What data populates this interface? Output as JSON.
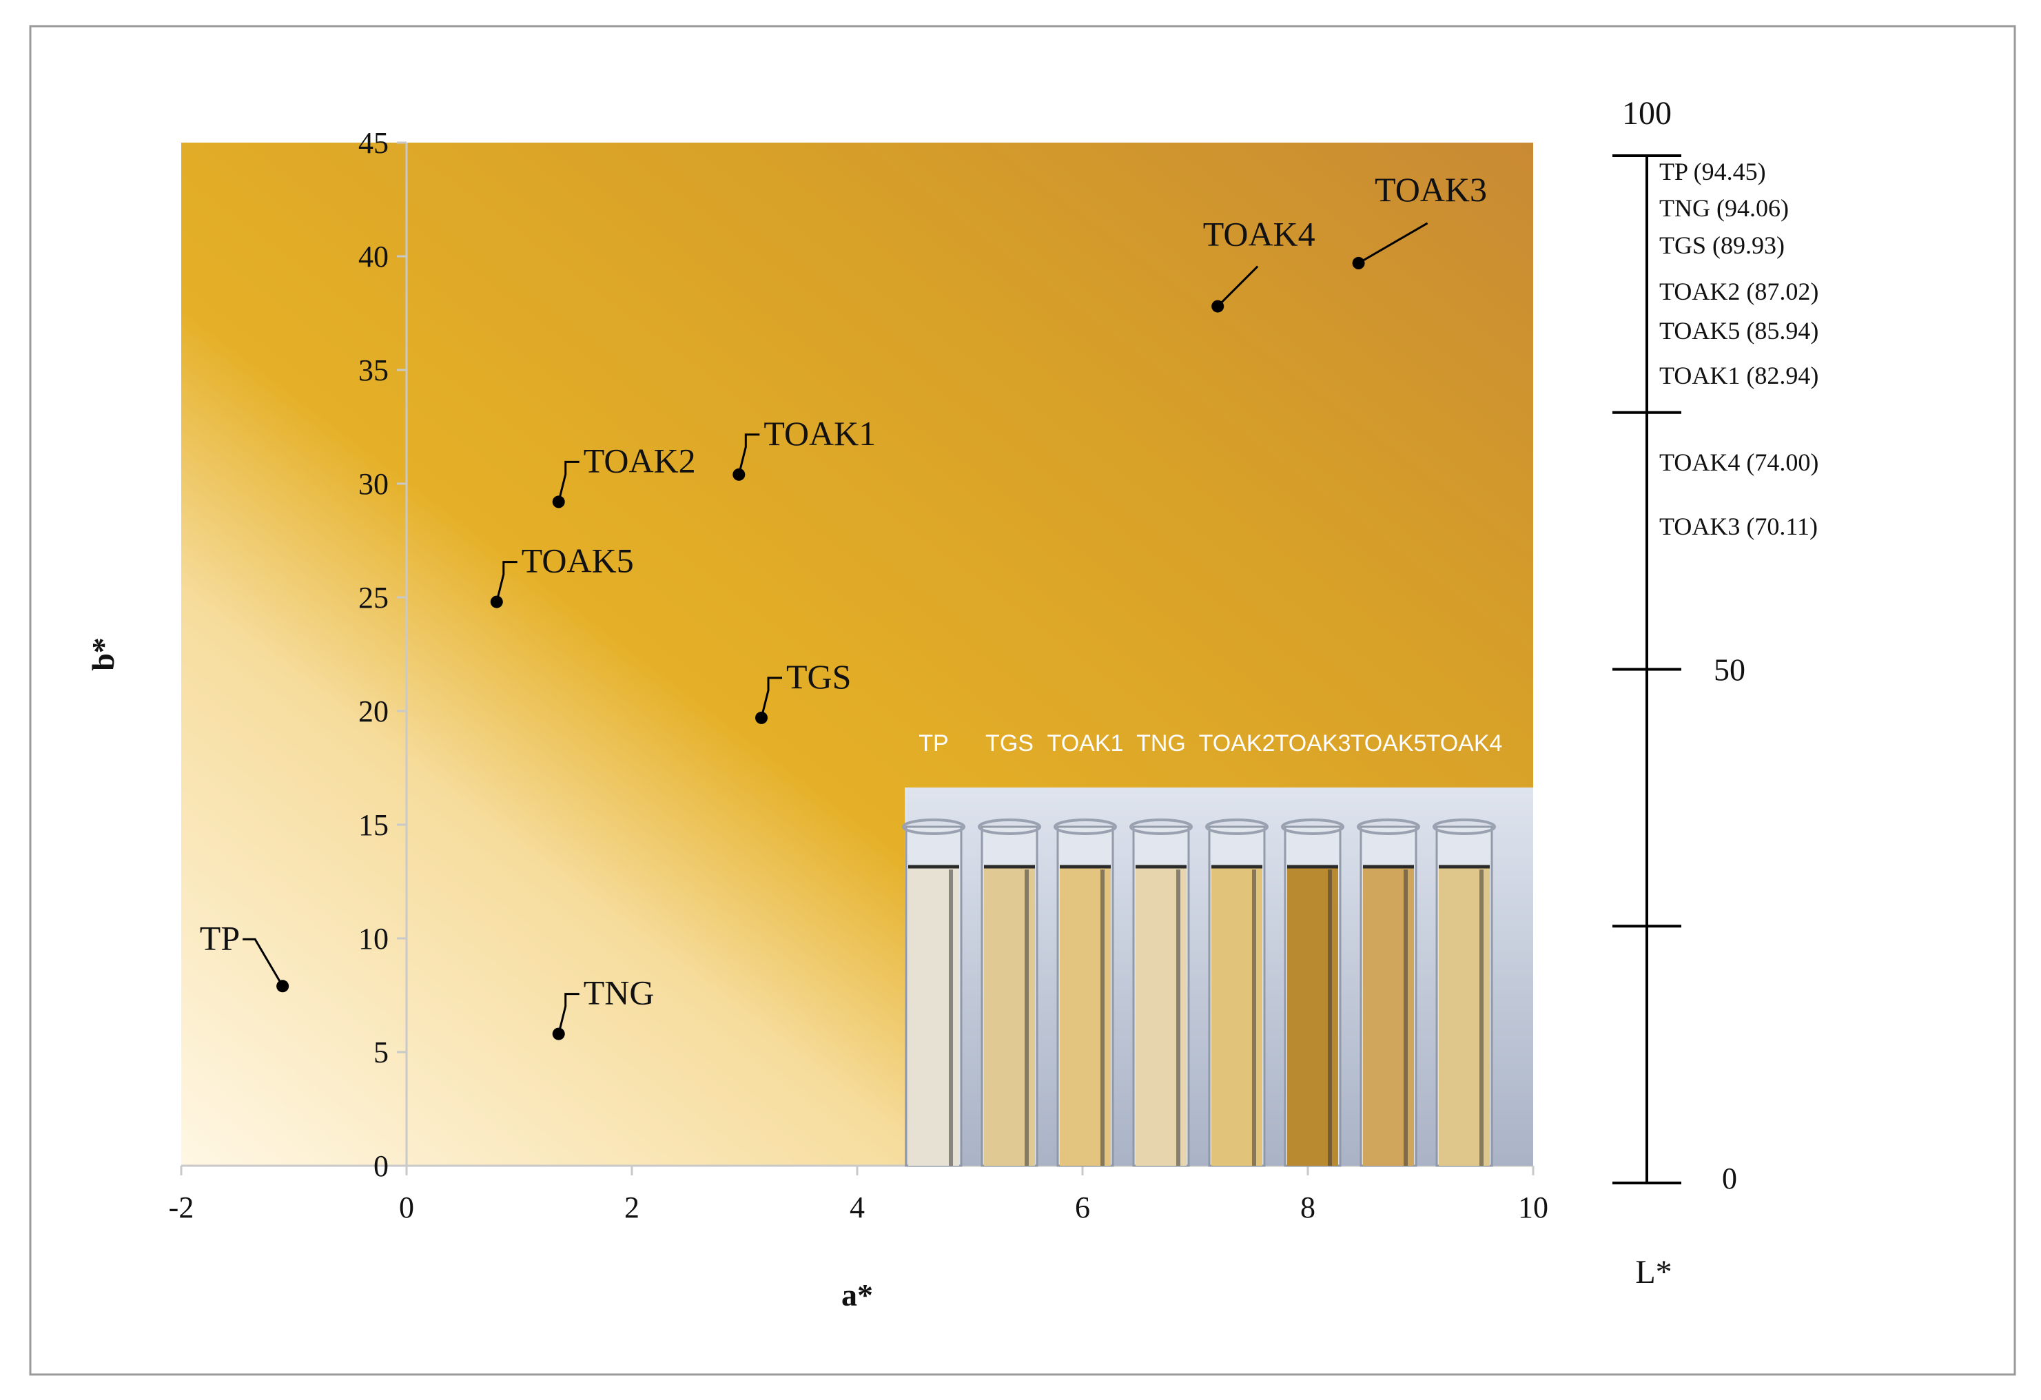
{
  "chart_data": {
    "type": "scatter",
    "xlabel": "a*",
    "ylabel": "b*",
    "xlim": [
      -2,
      10
    ],
    "ylim": [
      0,
      45
    ],
    "x_ticks": [
      "-2",
      "0",
      "2",
      "4",
      "6",
      "8",
      "10"
    ],
    "y_ticks": [
      "0",
      "5",
      "10",
      "15",
      "20",
      "25",
      "30",
      "35",
      "40",
      "45"
    ],
    "grid": false,
    "points": [
      {
        "label": "TP",
        "a": -1.1,
        "b": 7.9
      },
      {
        "label": "TNG",
        "a": 1.35,
        "b": 5.8
      },
      {
        "label": "TGS",
        "a": 3.15,
        "b": 19.7
      },
      {
        "label": "TOAK5",
        "a": 0.8,
        "b": 24.8
      },
      {
        "label": "TOAK2",
        "a": 1.35,
        "b": 29.2
      },
      {
        "label": "TOAK1",
        "a": 2.95,
        "b": 30.4
      },
      {
        "label": "TOAK4",
        "a": 7.2,
        "b": 37.8
      },
      {
        "label": "TOAK3",
        "a": 8.45,
        "b": 39.7
      }
    ],
    "l_scale": {
      "axis_label": "L*",
      "top_label": "100",
      "mid_label": "50",
      "bottom_label": "0",
      "entries": [
        {
          "text": "TP (94.45)"
        },
        {
          "text": "TNG (94.06)"
        },
        {
          "text": "TGS (89.93)"
        },
        {
          "text": "TOAK2 (87.02)"
        },
        {
          "text": "TOAK5 (85.94)"
        },
        {
          "text": "TOAK1 (82.94)"
        },
        {
          "text": "TOAK4 (74.00)"
        },
        {
          "text": "TOAK3 (70.11)"
        }
      ]
    },
    "inset": {
      "tube_labels": [
        "TP",
        "TGS",
        "TOAK1",
        "TNG",
        "TOAK2",
        "TOAK3",
        "TOAK5",
        "TOAK4"
      ],
      "tube_colors": [
        "#e6e1d2",
        "#e1c993",
        "#e3c57f",
        "#e6d5ad",
        "#e2c37a",
        "#b98a2f",
        "#cfa65c",
        "#dfc68a"
      ]
    },
    "colors": {
      "background_light": "#fdf3d8",
      "background_mid": "#e4ad1e",
      "background_dark": "#c98a34",
      "point": "#000000",
      "inset_bg": "#c7cedd"
    }
  }
}
